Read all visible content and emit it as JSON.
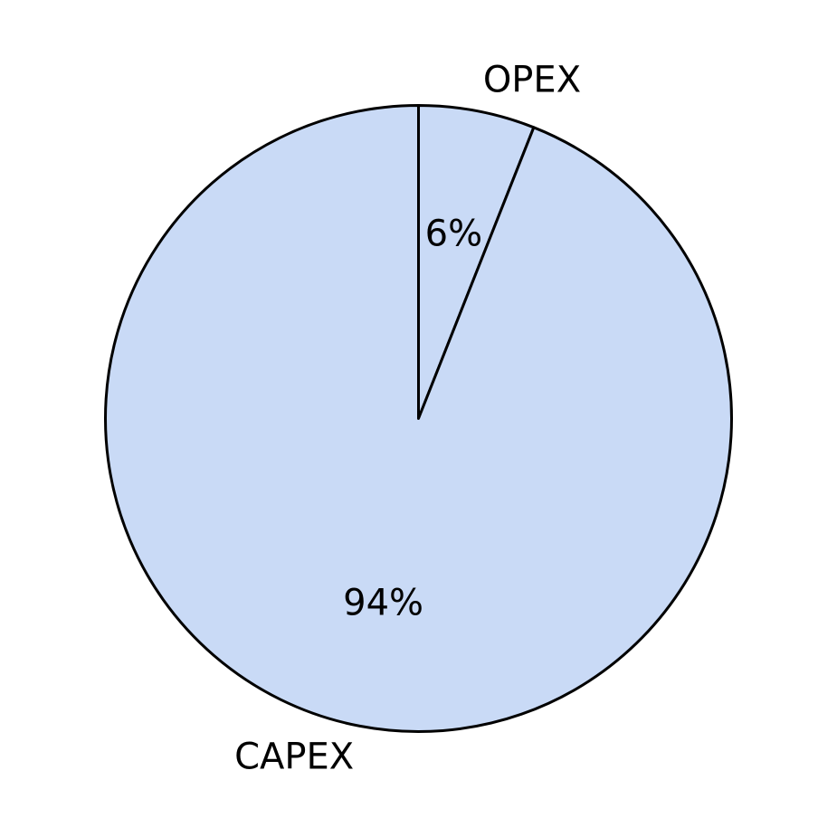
{
  "chart_data": {
    "type": "pie",
    "categories": [
      "OPEX",
      "CAPEX"
    ],
    "values": [
      6,
      94
    ],
    "value_labels": [
      "6%",
      "94%"
    ],
    "colors": [
      "#c9daf6",
      "#c9daf6"
    ],
    "edge_color": "#000000",
    "start": "top",
    "direction": "clockwise",
    "title": "",
    "legend": "none"
  }
}
